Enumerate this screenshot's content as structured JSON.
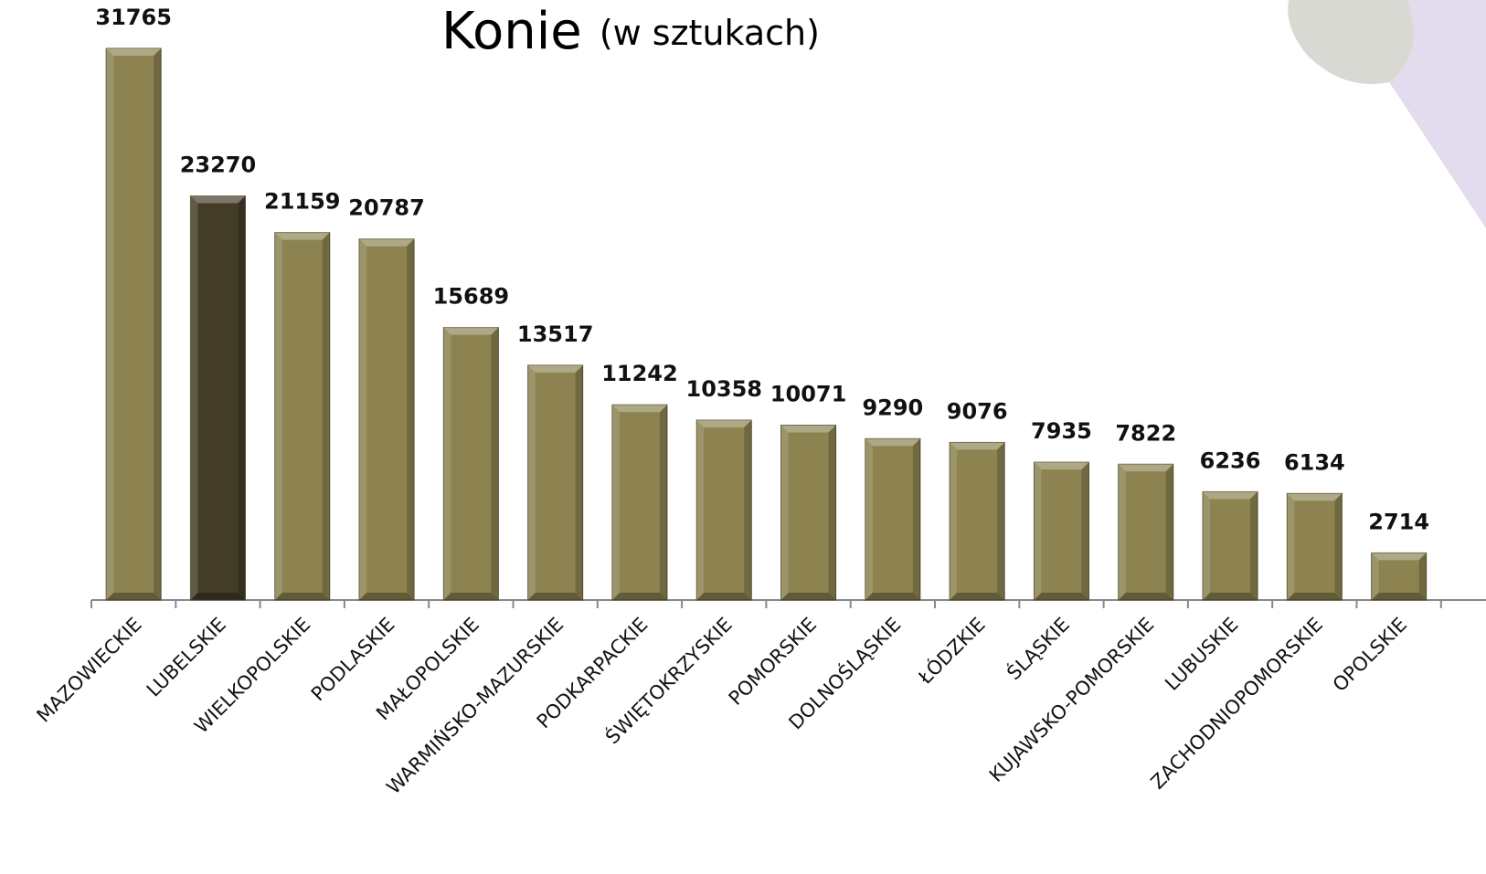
{
  "chart_data": {
    "type": "bar",
    "title": "Konie",
    "subtitle": "(w sztukach)",
    "categories": [
      "MAZOWIECKIE",
      "LUBELSKIE",
      "WIELKOPOLSKIE",
      "PODLASKIE",
      "MAŁOPOLSKIE",
      "WARMIŃSKO-MAZURSKIE",
      "PODKARPACKIE",
      "ŚWIĘTOKRZYSKIE",
      "POMORSKIE",
      "DOLNOŚLĄSKIE",
      "ŁÓDZKIE",
      "ŚLĄSKIE",
      "KUJAWSKO-POMORSKIE",
      "LUBUSKIE",
      "ZACHODNIOPOMORSKIE",
      "OPOLSKIE"
    ],
    "values": [
      31765,
      23270,
      21159,
      20787,
      15689,
      13517,
      11242,
      10358,
      10071,
      9290,
      9076,
      7935,
      7822,
      6236,
      6134,
      2714
    ],
    "colors": [
      "#8c8350",
      "#433d28",
      "#8c8350",
      "#8c8350",
      "#8c8350",
      "#8c8350",
      "#8c8350",
      "#8c8350",
      "#8c8350",
      "#8c8350",
      "#8c8350",
      "#8c8350",
      "#8c8350",
      "#8c8350",
      "#8c8350",
      "#8c8350"
    ]
  }
}
